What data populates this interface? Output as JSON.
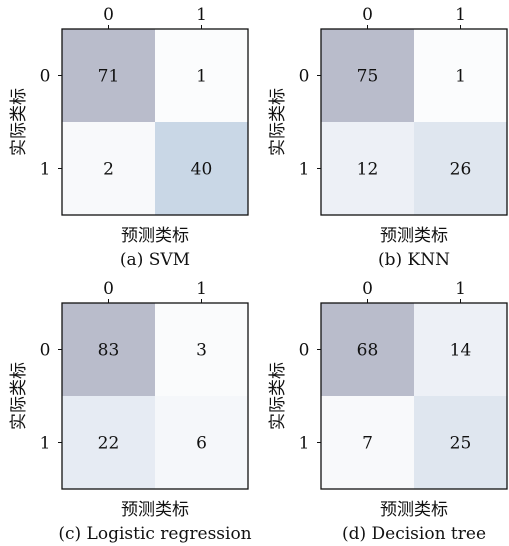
{
  "chart_data": [
    {
      "type": "heatmap",
      "caption": "(a) SVM",
      "xlabel": "预测类标",
      "ylabel": "实际类标",
      "x_ticks": [
        "0",
        "1"
      ],
      "y_ticks": [
        "0",
        "1"
      ],
      "values": [
        [
          71,
          1
        ],
        [
          2,
          40
        ]
      ],
      "colors": [
        [
          "#b9bccb",
          "#fbfcfd"
        ],
        [
          "#f8f9fb",
          "#c9d7e6"
        ]
      ]
    },
    {
      "type": "heatmap",
      "caption": "(b) KNN",
      "xlabel": "预测类标",
      "ylabel": "实际类标",
      "x_ticks": [
        "0",
        "1"
      ],
      "y_ticks": [
        "0",
        "1"
      ],
      "values": [
        [
          75,
          1
        ],
        [
          12,
          26
        ]
      ],
      "colors": [
        [
          "#b9bccb",
          "#fbfcfd"
        ],
        [
          "#edf0f6",
          "#dfe6ef"
        ]
      ]
    },
    {
      "type": "heatmap",
      "caption": "(c) Logistic regression",
      "xlabel": "预测类标",
      "ylabel": "实际类标",
      "x_ticks": [
        "0",
        "1"
      ],
      "y_ticks": [
        "0",
        "1"
      ],
      "values": [
        [
          83,
          3
        ],
        [
          22,
          6
        ]
      ],
      "colors": [
        [
          "#b9bccb",
          "#fafbfc"
        ],
        [
          "#e6ebf3",
          "#f5f7fa"
        ]
      ]
    },
    {
      "type": "heatmap",
      "caption": "(d) Decision tree",
      "xlabel": "预测类标",
      "ylabel": "实际类标",
      "x_ticks": [
        "0",
        "1"
      ],
      "y_ticks": [
        "0",
        "1"
      ],
      "values": [
        [
          68,
          14
        ],
        [
          7,
          25
        ]
      ],
      "colors": [
        [
          "#b9bccb",
          "#edf0f6"
        ],
        [
          "#f8f9fb",
          "#dfe6ef"
        ]
      ]
    }
  ]
}
